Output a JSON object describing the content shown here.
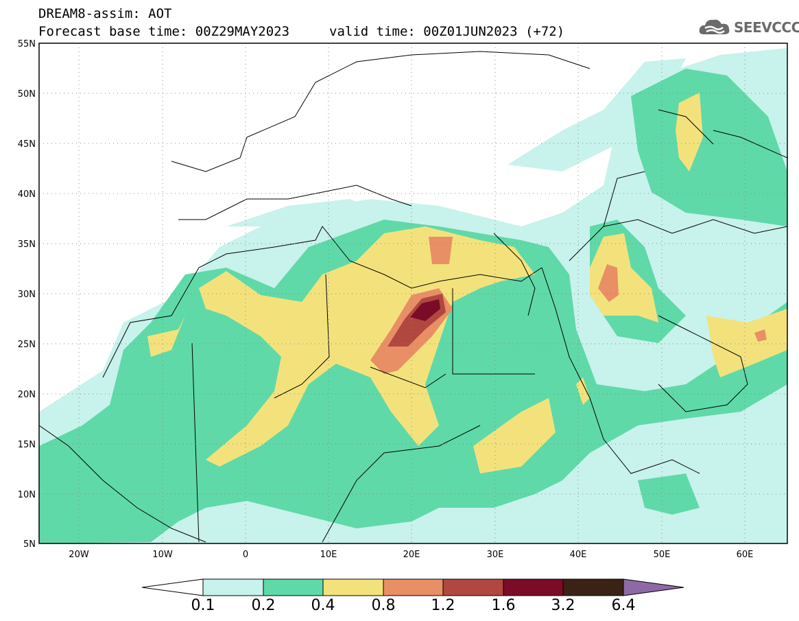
{
  "title": {
    "line1": "DREAM8-assim: AOT",
    "line2": "Forecast base time: 00Z29MAY2023",
    "valid": "valid time: 00Z01JUN2023 (+72)"
  },
  "logo": {
    "text": "SEEVCCC",
    "icon": "cloud-icon"
  },
  "map": {
    "lon_range": [
      -25,
      65
    ],
    "lat_range": [
      5,
      55
    ],
    "lat_ticks": [
      "55N",
      "50N",
      "45N",
      "40N",
      "35N",
      "30N",
      "25N",
      "20N",
      "15N",
      "10N",
      "5N"
    ],
    "lon_ticks": [
      "20W",
      "10W",
      "0",
      "10E",
      "20E",
      "30E",
      "40E",
      "50E",
      "60E"
    ],
    "grid": "dotted"
  },
  "colorbar": {
    "levels": [
      "0.1",
      "0.2",
      "0.4",
      "0.8",
      "1.2",
      "1.6",
      "3.2",
      "6.4"
    ],
    "colors": [
      "#c8f2ec",
      "#5fd9a8",
      "#f3e27c",
      "#e88f65",
      "#b0483f",
      "#7a0c27",
      "#3a2316",
      "#8e6aa5"
    ]
  }
}
